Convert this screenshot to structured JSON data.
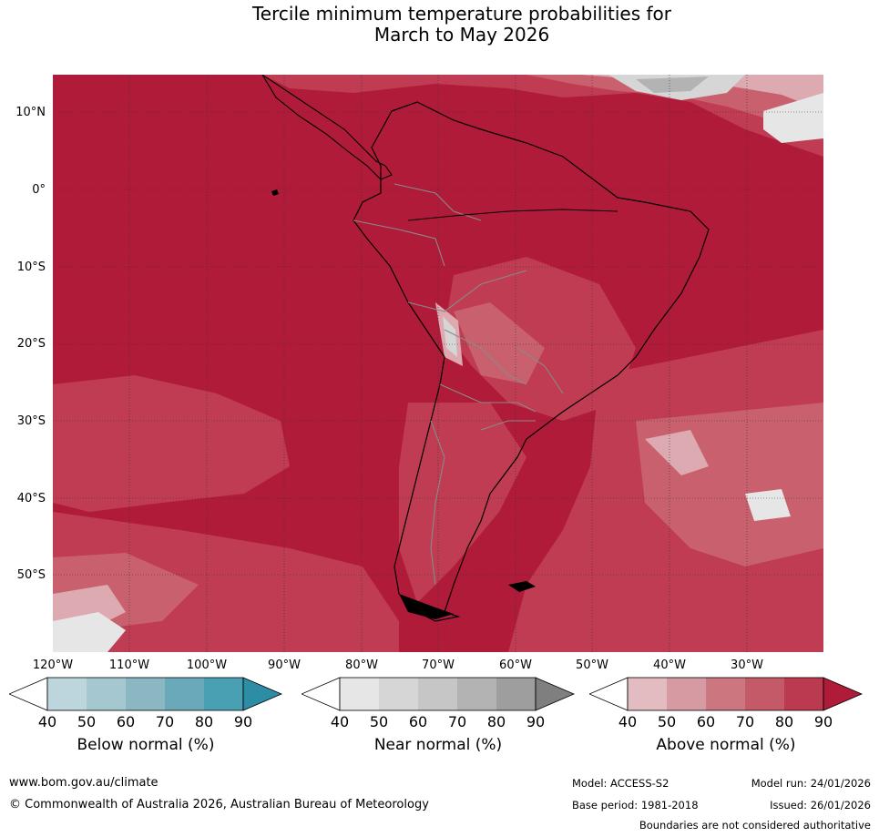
{
  "title": {
    "line1": "Tercile minimum temperature probabilities for",
    "line2": "March to May 2026"
  },
  "map": {
    "latitude_labels": [
      "10°N",
      "0°",
      "10°S",
      "20°S",
      "30°S",
      "40°S",
      "50°S"
    ],
    "longitude_labels": [
      "120°W",
      "110°W",
      "100°W",
      "90°W",
      "80°W",
      "70°W",
      "60°W",
      "50°W",
      "40°W",
      "30°W"
    ],
    "colors": {
      "above_90": "#b11b3a",
      "above_80": "#bf3c52",
      "above_70": "#c9606d",
      "above_60": "#d28590",
      "above_50": "#dcaab0",
      "above_40": "#e3bcc1",
      "near_40": "#e6e6e6",
      "near_50": "#d6d6d6",
      "near_60": "#c6c6c6",
      "near_70": "#b3b3b3",
      "near_80": "#9e9e9e",
      "near_90": "#7f7f7f",
      "land_border": "#000000",
      "country_border": "#8a8a8a",
      "grid": "#333333"
    }
  },
  "legends": [
    {
      "title": "Below normal (%)",
      "ticks": [
        "40",
        "50",
        "60",
        "70",
        "80",
        "90"
      ],
      "colors": [
        "#ffffff",
        "#bdd5dc",
        "#a5c7d0",
        "#8bb7c3",
        "#6aa9ba",
        "#4aa0b3",
        "#2d8da5"
      ]
    },
    {
      "title": "Near normal (%)",
      "ticks": [
        "40",
        "50",
        "60",
        "70",
        "80",
        "90"
      ],
      "colors": [
        "#ffffff",
        "#e6e6e6",
        "#d6d6d6",
        "#c6c6c6",
        "#b3b3b3",
        "#9e9e9e",
        "#7f7f7f"
      ]
    },
    {
      "title": "Above normal (%)",
      "ticks": [
        "40",
        "50",
        "60",
        "70",
        "80",
        "90"
      ],
      "colors": [
        "#ffffff",
        "#e3bcc1",
        "#d69aa2",
        "#cc7680",
        "#c45a68",
        "#bb3a50",
        "#b11b3a"
      ]
    }
  ],
  "footer": {
    "url": "www.bom.gov.au/climate",
    "copyright": "© Commonwealth of Australia 2026, Australian Bureau of Meteorology",
    "model": "Model: ACCESS-S2",
    "base_period": "Base period: 1981-2018",
    "model_run": "Model run: 24/01/2026",
    "issued": "Issued: 26/01/2026",
    "disclaimer": "Boundaries are not considered authoritative"
  }
}
